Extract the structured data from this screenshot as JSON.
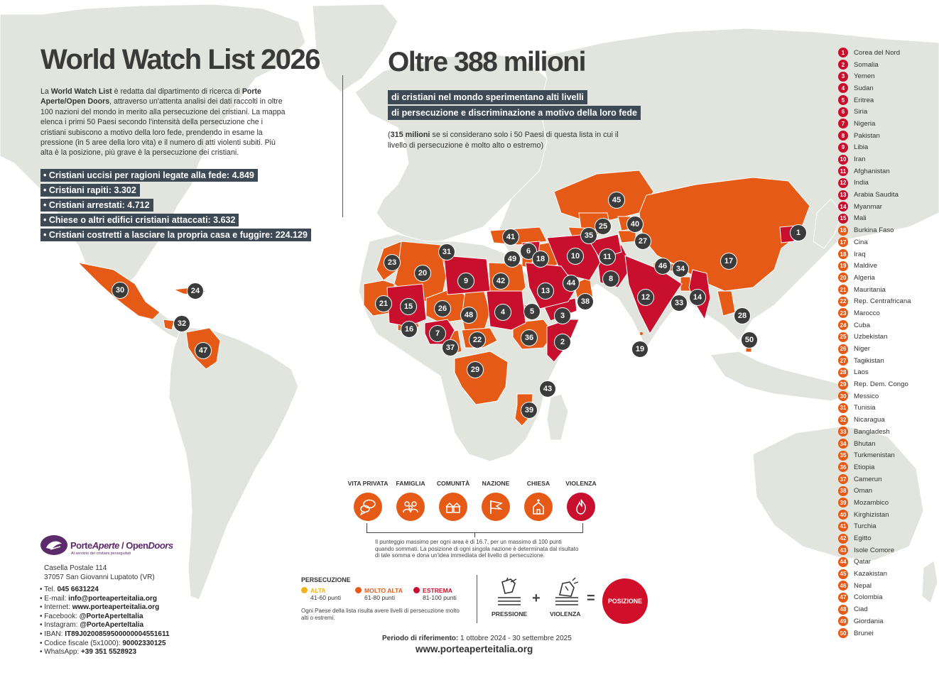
{
  "header": {
    "title": "World Watch List 2026",
    "intro_p1": "La ",
    "intro_b1": "World Watch List",
    "intro_p2": " è redatta dal dipartimento di ricerca di ",
    "intro_b2": "Porte Aperte/Open Doors",
    "intro_p3": ", attraverso un'attenta analisi dei dati raccolti in oltre 100 nazioni del mondo in merito alla persecuzione dei cristiani. La mappa elenca i primi 50 Paesi secondo l'intensità della persecuzione che i cristiani subiscono a motivo della loro fede, prendendo in esame la pressione (in 5 aree della loro vita) e il numero di atti violenti subiti. Più alta è la posizione, più grave è la persecuzione dei cristiani."
  },
  "stats": [
    "• Cristiani uccisi per ragioni legate alla fede: 4.849",
    "• Cristiani rapiti: 3.302",
    "• Cristiani arrestati: 4.712",
    "• Chiese o altri edifici cristiani attaccati: 3.632",
    "• Cristiani costretti a lasciare la propria casa e fuggire: 224.129"
  ],
  "headline": {
    "big": "Oltre 388 milioni",
    "line1": "di cristiani nel mondo sperimentano alti livelli",
    "line2": "di persecuzione e discriminazione a motivo della loro fede",
    "note_open": "(",
    "note_bold": "315 milioni",
    "note_rest": " se si considerano solo i 50 Paesi di questa lista in cui il livello di persecuzione è molto alto o estremo)"
  },
  "colors": {
    "extreme": "#c8102e",
    "very_high": "#e55a16",
    "high": "#f2b31b",
    "land": "#e2e4de",
    "ocean": "#ffffff",
    "text_box": "#3d4a55"
  },
  "ranking": [
    {
      "n": "1",
      "name": "Corea del Nord",
      "level": "extreme"
    },
    {
      "n": "2",
      "name": "Somalia",
      "level": "extreme"
    },
    {
      "n": "3",
      "name": "Yemen",
      "level": "extreme"
    },
    {
      "n": "4",
      "name": "Sudan",
      "level": "extreme"
    },
    {
      "n": "5",
      "name": "Eritrea",
      "level": "extreme"
    },
    {
      "n": "6",
      "name": "Siria",
      "level": "extreme"
    },
    {
      "n": "7",
      "name": "Nigeria",
      "level": "extreme"
    },
    {
      "n": "8",
      "name": "Pakistan",
      "level": "extreme"
    },
    {
      "n": "9",
      "name": "Libia",
      "level": "extreme"
    },
    {
      "n": "10",
      "name": "Iran",
      "level": "extreme"
    },
    {
      "n": "11",
      "name": "Afghanistan",
      "level": "extreme"
    },
    {
      "n": "12",
      "name": "India",
      "level": "extreme"
    },
    {
      "n": "13",
      "name": "Arabia Saudita",
      "level": "extreme"
    },
    {
      "n": "14",
      "name": "Myanmar",
      "level": "extreme"
    },
    {
      "n": "15",
      "name": "Mali",
      "level": "extreme"
    },
    {
      "n": "16",
      "name": "Burkina Faso",
      "level": "very_high"
    },
    {
      "n": "17",
      "name": "Cina",
      "level": "very_high"
    },
    {
      "n": "18",
      "name": "Iraq",
      "level": "very_high"
    },
    {
      "n": "19",
      "name": "Maldive",
      "level": "very_high"
    },
    {
      "n": "20",
      "name": "Algeria",
      "level": "very_high"
    },
    {
      "n": "21",
      "name": "Mauritania",
      "level": "very_high"
    },
    {
      "n": "22",
      "name": "Rep. Centrafricana",
      "level": "very_high"
    },
    {
      "n": "23",
      "name": "Marocco",
      "level": "very_high"
    },
    {
      "n": "24",
      "name": "Cuba",
      "level": "very_high"
    },
    {
      "n": "25",
      "name": "Uzbekistan",
      "level": "very_high"
    },
    {
      "n": "26",
      "name": "Niger",
      "level": "very_high"
    },
    {
      "n": "27",
      "name": "Tagikistan",
      "level": "very_high"
    },
    {
      "n": "28",
      "name": "Laos",
      "level": "very_high"
    },
    {
      "n": "29",
      "name": "Rep. Dem. Congo",
      "level": "very_high"
    },
    {
      "n": "30",
      "name": "Messico",
      "level": "very_high"
    },
    {
      "n": "31",
      "name": "Tunisia",
      "level": "very_high"
    },
    {
      "n": "32",
      "name": "Nicaragua",
      "level": "very_high"
    },
    {
      "n": "33",
      "name": "Bangladesh",
      "level": "very_high"
    },
    {
      "n": "34",
      "name": "Bhutan",
      "level": "very_high"
    },
    {
      "n": "35",
      "name": "Turkmenistan",
      "level": "very_high"
    },
    {
      "n": "36",
      "name": "Etiopia",
      "level": "very_high"
    },
    {
      "n": "37",
      "name": "Camerun",
      "level": "very_high"
    },
    {
      "n": "38",
      "name": "Oman",
      "level": "very_high"
    },
    {
      "n": "39",
      "name": "Mozambico",
      "level": "very_high"
    },
    {
      "n": "40",
      "name": "Kirghizistan",
      "level": "very_high"
    },
    {
      "n": "41",
      "name": "Turchia",
      "level": "very_high"
    },
    {
      "n": "42",
      "name": "Egitto",
      "level": "very_high"
    },
    {
      "n": "43",
      "name": "Isole Comore",
      "level": "very_high"
    },
    {
      "n": "44",
      "name": "Qatar",
      "level": "very_high"
    },
    {
      "n": "45",
      "name": "Kazakistan",
      "level": "very_high"
    },
    {
      "n": "46",
      "name": "Nepal",
      "level": "very_high"
    },
    {
      "n": "47",
      "name": "Colombia",
      "level": "very_high"
    },
    {
      "n": "48",
      "name": "Ciad",
      "level": "very_high"
    },
    {
      "n": "49",
      "name": "Giordania",
      "level": "very_high"
    },
    {
      "n": "50",
      "name": "Brunei",
      "level": "very_high"
    }
  ],
  "areas": [
    {
      "label": "VITA PRIVATA",
      "icon": "speech-bubbles-icon",
      "color": "very_high"
    },
    {
      "label": "FAMIGLIA",
      "icon": "family-icon",
      "color": "very_high"
    },
    {
      "label": "COMUNITÀ",
      "icon": "community-icon",
      "color": "very_high"
    },
    {
      "label": "NAZIONE",
      "icon": "flag-icon",
      "color": "very_high"
    },
    {
      "label": "CHIESA",
      "icon": "church-icon",
      "color": "very_high"
    },
    {
      "label": "VIOLENZA",
      "icon": "fire-icon",
      "color": "extreme"
    }
  ],
  "points_note": "Il punteggio massimo per ogni area è di 16.7, per un massimo di 100 punti quando sommati. La posizione di ogni singola nazione è determinata dal risultato di tale somma e dona un'idea immediata del livello di persecuzione.",
  "legend": {
    "title": "PERSECUZIONE",
    "levels": [
      {
        "name": "ALTA",
        "range": "41-60 punti",
        "color": "high"
      },
      {
        "name": "MOLTO ALTA",
        "range": "61-80 punti",
        "color": "very_high"
      },
      {
        "name": "ESTREMA",
        "range": "81-100 punti",
        "color": "extreme"
      }
    ],
    "note": "Ogni Paese della lista risulta avere livelli di persecuzione molto alti o estremi."
  },
  "formula": {
    "pressione": "PRESSIONE",
    "violenza": "VIOLENZA",
    "plus": "+",
    "equals": "=",
    "posizione": "POSIZIONE"
  },
  "org": {
    "name1": "Porte",
    "name2": "Aperte",
    "name3": " / Open",
    "name4": "Doors",
    "tagline": "Al servizio dei cristiani perseguitati",
    "addr1": "Casella Postale 114",
    "addr2": "37057 San Giovanni Lupatoto (VR)",
    "contacts": [
      {
        "label": "• Tel. ",
        "value": "045 6631224"
      },
      {
        "label": "• E-mail: ",
        "value": "info@porteaperteitalia.org"
      },
      {
        "label": "• Internet: ",
        "value": "www.porteaperteitalia.org"
      },
      {
        "label": "• Facebook: ",
        "value": "@PorteAperteItalia"
      },
      {
        "label": "• Instagram: ",
        "value": "@PorteAperteItalia"
      },
      {
        "label": "• IBAN: ",
        "value": "IT89J0200859500000004551611"
      },
      {
        "label": "• Codice fiscale (5x1000): ",
        "value": "90002330125"
      },
      {
        "label": "• WhatsApp: ",
        "value": "+39 351 5528923"
      }
    ]
  },
  "footer": {
    "period_label": "Periodo di riferimento:",
    "period_value": " 1 ottobre 2024 - 30 settembre 2025",
    "website": "www.porteaperteitalia.org"
  }
}
